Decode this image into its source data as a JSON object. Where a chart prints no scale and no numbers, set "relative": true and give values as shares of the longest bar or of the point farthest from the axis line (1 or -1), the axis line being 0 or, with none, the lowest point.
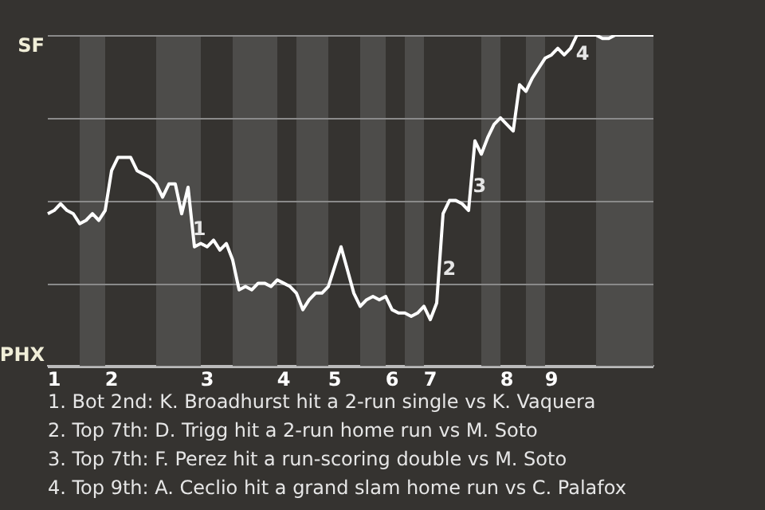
{
  "chart_data": {
    "type": "line",
    "categories": [
      null,
      "1",
      null,
      null,
      null,
      null,
      null,
      null,
      null,
      null,
      "2",
      null,
      null,
      null,
      null,
      null,
      null,
      null,
      null,
      null,
      null,
      null,
      null,
      null,
      null,
      "3",
      null,
      null,
      null,
      null,
      null,
      null,
      null,
      null,
      null,
      null,
      null,
      "4",
      null,
      null,
      null,
      null,
      null,
      null,
      null,
      "5",
      null,
      null,
      null,
      null,
      null,
      null,
      null,
      null,
      "6",
      null,
      null,
      null,
      null,
      null,
      "7",
      null,
      null,
      null,
      null,
      null,
      null,
      null,
      null,
      null,
      null,
      null,
      "8",
      null,
      null,
      null,
      null,
      null,
      null,
      "9",
      null,
      null,
      null,
      null,
      null,
      null,
      null,
      null,
      null,
      null,
      null,
      null,
      null,
      null,
      null,
      null
    ],
    "series": [
      {
        "color": "#ffffff",
        "values": [
          0.46,
          0.47,
          0.49,
          0.47,
          0.46,
          0.43,
          0.44,
          0.46,
          0.44,
          0.47,
          0.59,
          0.63,
          0.63,
          0.63,
          0.59,
          0.58,
          0.57,
          0.55,
          0.51,
          0.55,
          0.55,
          0.46,
          0.54,
          0.36,
          0.37,
          0.36,
          0.38,
          0.35,
          0.37,
          0.32,
          0.23,
          0.24,
          0.23,
          0.25,
          0.25,
          0.24,
          0.26,
          0.25,
          0.24,
          0.22,
          0.17,
          0.2,
          0.22,
          0.22,
          0.24,
          0.3,
          0.36,
          0.29,
          0.22,
          0.18,
          0.2,
          0.21,
          0.2,
          0.21,
          0.17,
          0.16,
          0.16,
          0.15,
          0.16,
          0.18,
          0.14,
          0.19,
          0.46,
          0.5,
          0.5,
          0.49,
          0.47,
          0.68,
          0.64,
          0.69,
          0.73,
          0.75,
          0.73,
          0.71,
          0.85,
          0.83,
          0.87,
          0.9,
          0.93,
          0.94,
          0.96,
          0.94,
          0.96,
          1,
          1,
          1,
          1,
          0.99,
          0.99,
          1,
          1,
          1,
          1,
          1,
          1,
          1
        ]
      }
    ],
    "relative": true,
    "marker": "none",
    "ref_lines": [
      {
        "axis": "y",
        "value": 1,
        "label": "SF",
        "color": "#8a8a8a"
      },
      {
        "axis": "y",
        "value": 0.75,
        "color": "#8a8a8a"
      },
      {
        "axis": "y",
        "value": 0.5,
        "color": "#8a8a8a"
      },
      {
        "axis": "y",
        "value": 0.25,
        "color": "#8a8a8a"
      },
      {
        "axis": "y",
        "value": 0,
        "label": "PHX",
        "color": "#bbbbbb"
      }
    ],
    "annotations": [
      "1",
      "2",
      "3",
      "4",
      "1. Bot 2nd: K. Broadhurst hit a 2-run single vs K. Vaquera",
      "2. Top 7th: D. Trigg hit a 2-run home run vs M. Soto",
      "3. Top 7th: F. Perez hit a run-scoring double vs M. Soto",
      "4. Top 9th: A. Ceclio hit a grand slam home run vs C. Palafox"
    ]
  }
}
